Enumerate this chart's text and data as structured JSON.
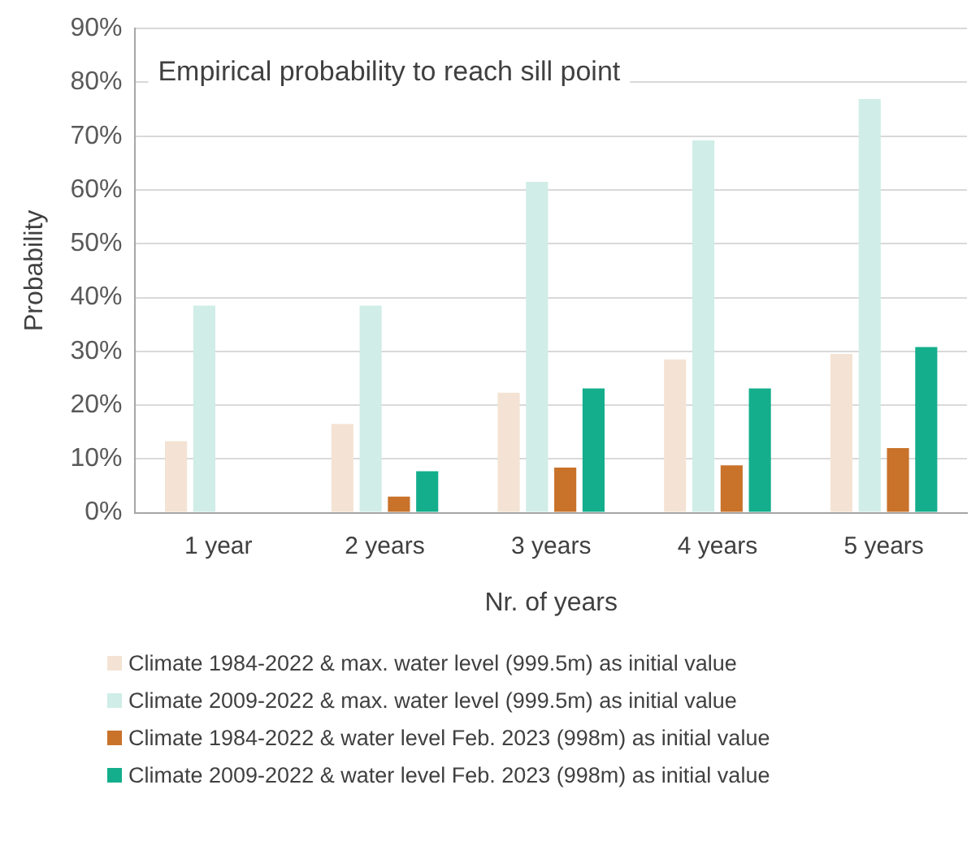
{
  "chart_data": {
    "type": "bar",
    "title": "Empirical probability to reach sill point",
    "xlabel": "Nr. of years",
    "ylabel": "Probability",
    "categories": [
      "1 year",
      "2 years",
      "3 years",
      "4 years",
      "5 years"
    ],
    "series": [
      {
        "name": "Climate 1984-2022 & max. water level (999.5m) as initial value",
        "color": "#f4e3d4",
        "values": [
          13.3,
          16.5,
          22.3,
          28.5,
          29.5
        ]
      },
      {
        "name": "Climate 2009-2022 & max. water level (999.5m) as initial value",
        "color": "#d0ede7",
        "values": [
          38.5,
          38.5,
          61.5,
          69.2,
          76.9
        ]
      },
      {
        "name": "Climate 1984-2022 & water level Feb. 2023 (998m) as initial value",
        "color": "#c8722a",
        "values": [
          0,
          3,
          8.4,
          8.8,
          12
        ]
      },
      {
        "name": "Climate 2009-2022 & water level Feb. 2023 (998m) as initial value",
        "color": "#14ae8c",
        "values": [
          0,
          7.7,
          23.1,
          23.1,
          30.8
        ]
      }
    ],
    "ylim": [
      0,
      90
    ],
    "yticks": [
      {
        "value": 0,
        "label": "0%"
      },
      {
        "value": 10,
        "label": "10%"
      },
      {
        "value": 20,
        "label": "20%"
      },
      {
        "value": 30,
        "label": "30%"
      },
      {
        "value": 40,
        "label": "40%"
      },
      {
        "value": 50,
        "label": "50%"
      },
      {
        "value": 60,
        "label": "60%"
      },
      {
        "value": 70,
        "label": "70%"
      },
      {
        "value": 80,
        "label": "80%"
      },
      {
        "value": 90,
        "label": "90%"
      }
    ],
    "grid": "y",
    "legend": "bottom"
  }
}
